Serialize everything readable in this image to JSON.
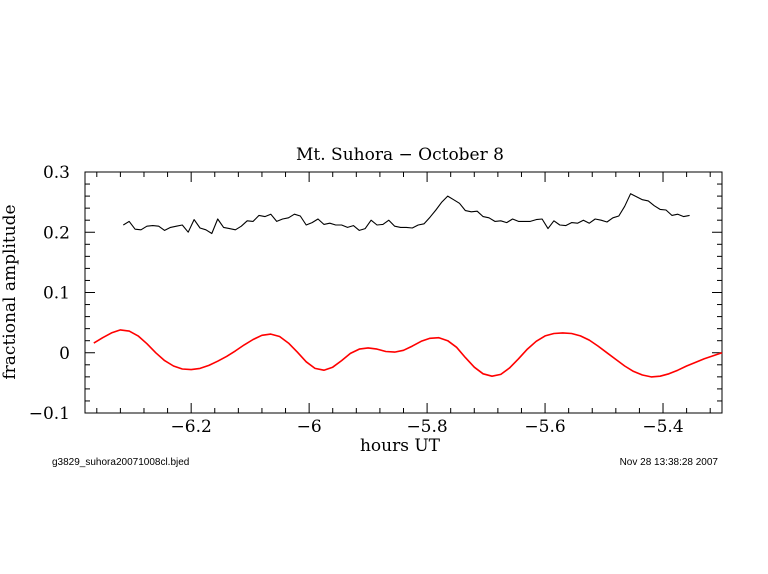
{
  "chart_data": {
    "type": "line",
    "title": "Mt. Suhora  − October 8",
    "xlabel": "hours UT",
    "ylabel": "fractional amplitude",
    "xlim": [
      -6.38,
      -5.3
    ],
    "ylim": [
      -0.1,
      0.3
    ],
    "x_ticks": [
      -6.2,
      -6.0,
      -5.8,
      -5.6,
      -5.4
    ],
    "x_tick_labels": [
      "−6.2",
      "−6",
      "−5.8",
      "−5.6",
      "−5.4"
    ],
    "y_ticks": [
      -0.1,
      0,
      0.1,
      0.2,
      0.3
    ],
    "y_tick_labels": [
      "−0.1",
      "0",
      "0.1",
      "0.2",
      "0.3"
    ],
    "grid": false,
    "series": [
      {
        "color": "#000000",
        "x": [
          -6.315,
          -6.305,
          -6.295,
          -6.285,
          -6.275,
          -6.265,
          -6.255,
          -6.245,
          -6.235,
          -6.225,
          -6.215,
          -6.205,
          -6.195,
          -6.185,
          -6.175,
          -6.165,
          -6.155,
          -6.145,
          -6.135,
          -6.125,
          -6.115,
          -6.105,
          -6.095,
          -6.085,
          -6.075,
          -6.065,
          -6.055,
          -6.045,
          -6.035,
          -6.025,
          -6.015,
          -6.005,
          -5.995,
          -5.985,
          -5.975,
          -5.965,
          -5.955,
          -5.945,
          -5.935,
          -5.925,
          -5.915,
          -5.905,
          -5.895,
          -5.885,
          -5.875,
          -5.865,
          -5.855,
          -5.845,
          -5.835,
          -5.825,
          -5.815,
          -5.805,
          -5.795,
          -5.785,
          -5.775,
          -5.765,
          -5.755,
          -5.745,
          -5.735,
          -5.725,
          -5.715,
          -5.705,
          -5.695,
          -5.685,
          -5.675,
          -5.665,
          -5.655,
          -5.645,
          -5.635,
          -5.625,
          -5.615,
          -5.605,
          -5.595,
          -5.585,
          -5.575,
          -5.565,
          -5.555,
          -5.545,
          -5.535,
          -5.525,
          -5.515,
          -5.505,
          -5.495,
          -5.485,
          -5.475,
          -5.465,
          -5.455,
          -5.445,
          -5.435,
          -5.425,
          -5.415,
          -5.405,
          -5.395,
          -5.385,
          -5.375,
          -5.365,
          -5.355
        ],
        "values": [
          0.212,
          0.218,
          0.205,
          0.204,
          0.21,
          0.211,
          0.21,
          0.203,
          0.208,
          0.21,
          0.212,
          0.2,
          0.221,
          0.207,
          0.204,
          0.198,
          0.222,
          0.208,
          0.206,
          0.204,
          0.21,
          0.219,
          0.218,
          0.228,
          0.226,
          0.23,
          0.218,
          0.222,
          0.224,
          0.23,
          0.227,
          0.212,
          0.216,
          0.222,
          0.213,
          0.215,
          0.212,
          0.212,
          0.208,
          0.211,
          0.203,
          0.206,
          0.22,
          0.212,
          0.213,
          0.22,
          0.21,
          0.208,
          0.208,
          0.207,
          0.212,
          0.214,
          0.225,
          0.237,
          0.25,
          0.26,
          0.254,
          0.248,
          0.236,
          0.234,
          0.235,
          0.226,
          0.224,
          0.218,
          0.219,
          0.216,
          0.222,
          0.218,
          0.218,
          0.218,
          0.221,
          0.222,
          0.206,
          0.219,
          0.212,
          0.211,
          0.216,
          0.215,
          0.22,
          0.215,
          0.222,
          0.22,
          0.217,
          0.224,
          0.227,
          0.243,
          0.264,
          0.259,
          0.254,
          0.252,
          0.244,
          0.238,
          0.237,
          0.228,
          0.23,
          0.226,
          0.228
        ]
      },
      {
        "color": "#ff0000",
        "x": [
          -6.365,
          -6.35,
          -6.335,
          -6.32,
          -6.305,
          -6.29,
          -6.275,
          -6.26,
          -6.245,
          -6.23,
          -6.215,
          -6.2,
          -6.185,
          -6.17,
          -6.155,
          -6.14,
          -6.125,
          -6.11,
          -6.095,
          -6.08,
          -6.065,
          -6.05,
          -6.035,
          -6.02,
          -6.005,
          -5.99,
          -5.975,
          -5.96,
          -5.945,
          -5.93,
          -5.915,
          -5.9,
          -5.885,
          -5.87,
          -5.855,
          -5.84,
          -5.825,
          -5.81,
          -5.795,
          -5.78,
          -5.765,
          -5.75,
          -5.735,
          -5.72,
          -5.705,
          -5.69,
          -5.675,
          -5.66,
          -5.645,
          -5.63,
          -5.615,
          -5.6,
          -5.585,
          -5.57,
          -5.555,
          -5.54,
          -5.525,
          -5.51,
          -5.495,
          -5.48,
          -5.465,
          -5.45,
          -5.435,
          -5.42,
          -5.405,
          -5.39,
          -5.375,
          -5.36,
          -5.345,
          -5.33,
          -5.315,
          -5.3
        ],
        "values": [
          0.016,
          0.025,
          0.033,
          0.038,
          0.036,
          0.028,
          0.015,
          0.0,
          -0.013,
          -0.022,
          -0.027,
          -0.028,
          -0.026,
          -0.021,
          -0.014,
          -0.006,
          0.003,
          0.013,
          0.022,
          0.029,
          0.031,
          0.027,
          0.016,
          0.001,
          -0.015,
          -0.026,
          -0.029,
          -0.024,
          -0.013,
          -0.001,
          0.006,
          0.008,
          0.006,
          0.002,
          0.001,
          0.004,
          0.011,
          0.019,
          0.024,
          0.025,
          0.02,
          0.009,
          -0.008,
          -0.024,
          -0.035,
          -0.039,
          -0.036,
          -0.025,
          -0.01,
          0.006,
          0.019,
          0.028,
          0.032,
          0.033,
          0.032,
          0.028,
          0.021,
          0.011,
          0.0,
          -0.011,
          -0.022,
          -0.031,
          -0.037,
          -0.04,
          -0.039,
          -0.035,
          -0.029,
          -0.022,
          -0.016,
          -0.01,
          -0.005,
          0.0
        ]
      }
    ]
  },
  "footer": {
    "left": "g3829_suhora20071008cl.bjed",
    "right": "Nov 28 13:38:28 2007"
  }
}
